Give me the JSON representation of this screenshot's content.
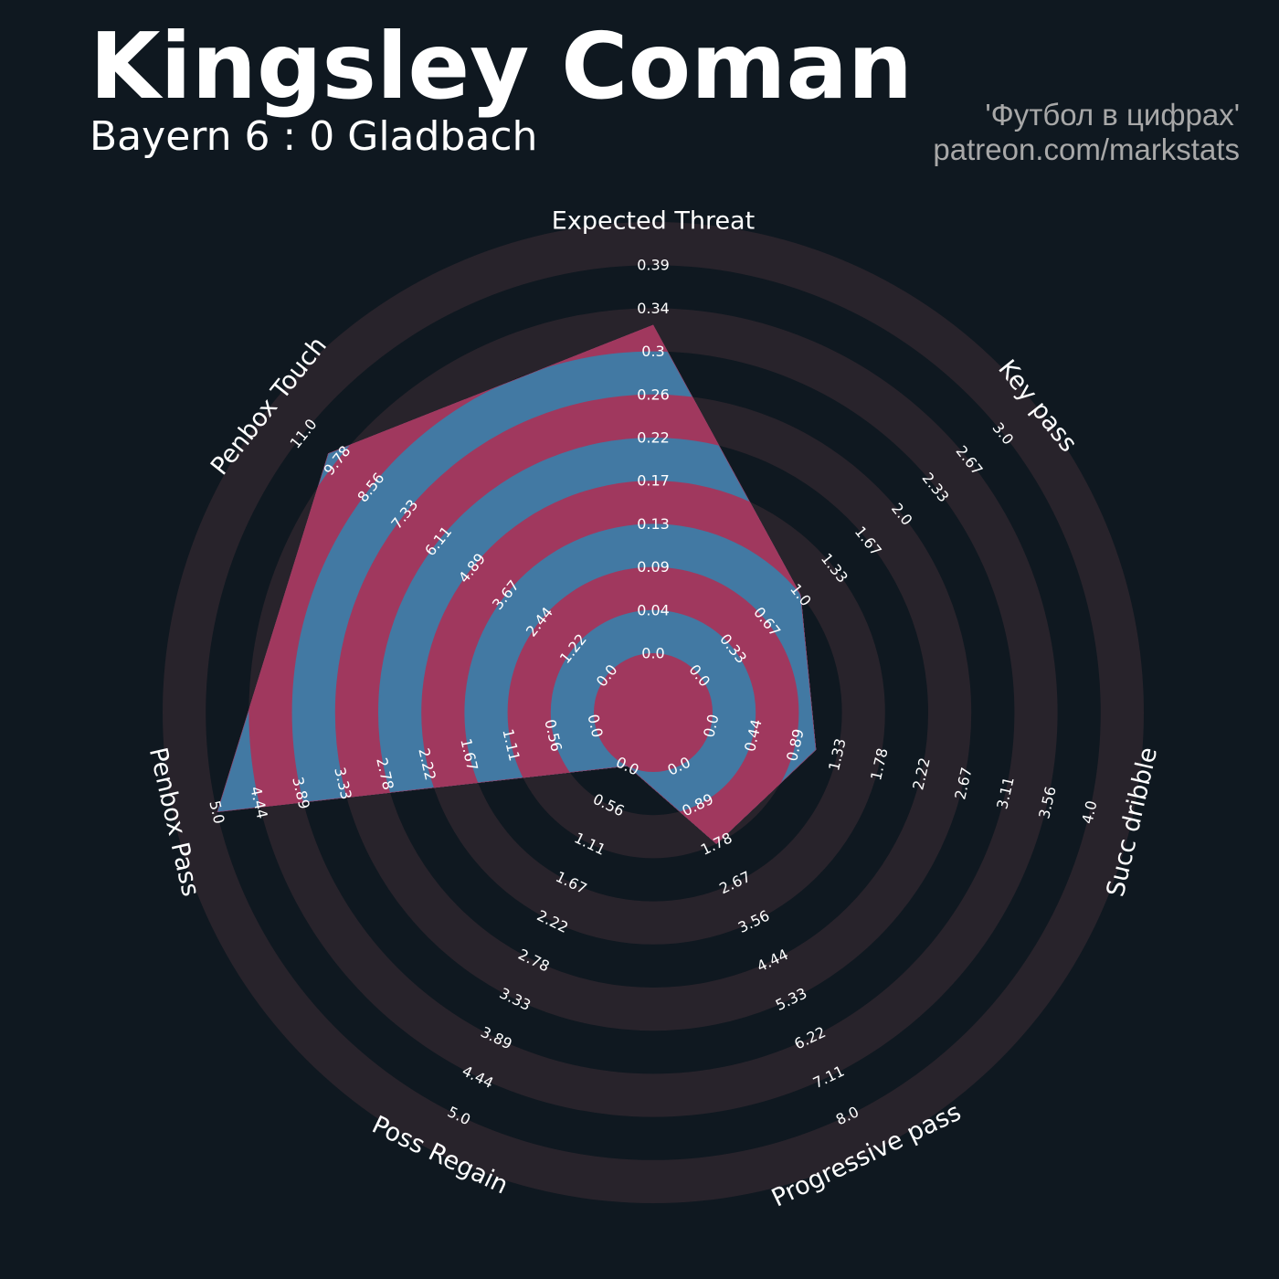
{
  "header": {
    "title": "Kingsley Coman",
    "subtitle": "Bayern 6 : 0 Gladbach",
    "credit_line1": "'Футбол в цифрах'",
    "credit_line2": "patreon.com/markstats"
  },
  "colors": {
    "background": "#0f1820",
    "ring_dark": "#28232b",
    "ring_light": "#0f1820",
    "player_fill_blue": "#4279a3",
    "player_fill_pink": "#a0385e",
    "tick_text": "#ffffff"
  },
  "chart_data": {
    "type": "radar",
    "series": [
      {
        "values": [
          0.33,
          1.0,
          1.11,
          1.78,
          0.0,
          5.0,
          10.1
        ]
      }
    ],
    "axes": [
      {
        "label": "Expected Threat",
        "ticks": [
          "0.0",
          "0.04",
          "0.09",
          "0.13",
          "0.17",
          "0.22",
          "0.26",
          "0.3",
          "0.34",
          "0.39"
        ],
        "max": 0.39
      },
      {
        "label": "Key pass",
        "ticks": [
          "0.0",
          "0.33",
          "0.67",
          "1.0",
          "1.33",
          "1.67",
          "2.0",
          "2.33",
          "2.67",
          "3.0"
        ],
        "max": 3.0
      },
      {
        "label": "Succ dribble",
        "ticks": [
          "0.0",
          "0.44",
          "0.89",
          "1.33",
          "1.78",
          "2.22",
          "2.67",
          "3.11",
          "3.56",
          "4.0"
        ],
        "max": 4.0
      },
      {
        "label": "Progressive pass",
        "ticks": [
          "0.0",
          "0.89",
          "1.78",
          "2.67",
          "3.56",
          "4.44",
          "5.33",
          "6.22",
          "7.11",
          "8.0"
        ],
        "max": 8.0
      },
      {
        "label": "Poss Regain",
        "ticks": [
          "0.0",
          "0.56",
          "1.11",
          "1.67",
          "2.22",
          "2.78",
          "3.33",
          "3.89",
          "4.44",
          "5.0"
        ],
        "max": 5.0
      },
      {
        "label": "Penbox Pass",
        "ticks": [
          "0.0",
          "0.56",
          "1.11",
          "1.67",
          "2.22",
          "2.78",
          "3.33",
          "3.89",
          "4.44",
          "5.0"
        ],
        "max": 5.0
      },
      {
        "label": "Penbox Touch",
        "ticks": [
          "0.0",
          "1.22",
          "2.44",
          "3.67",
          "4.89",
          "6.11",
          "7.33",
          "8.56",
          "9.78",
          "11.0"
        ],
        "max": 11.0
      }
    ]
  }
}
